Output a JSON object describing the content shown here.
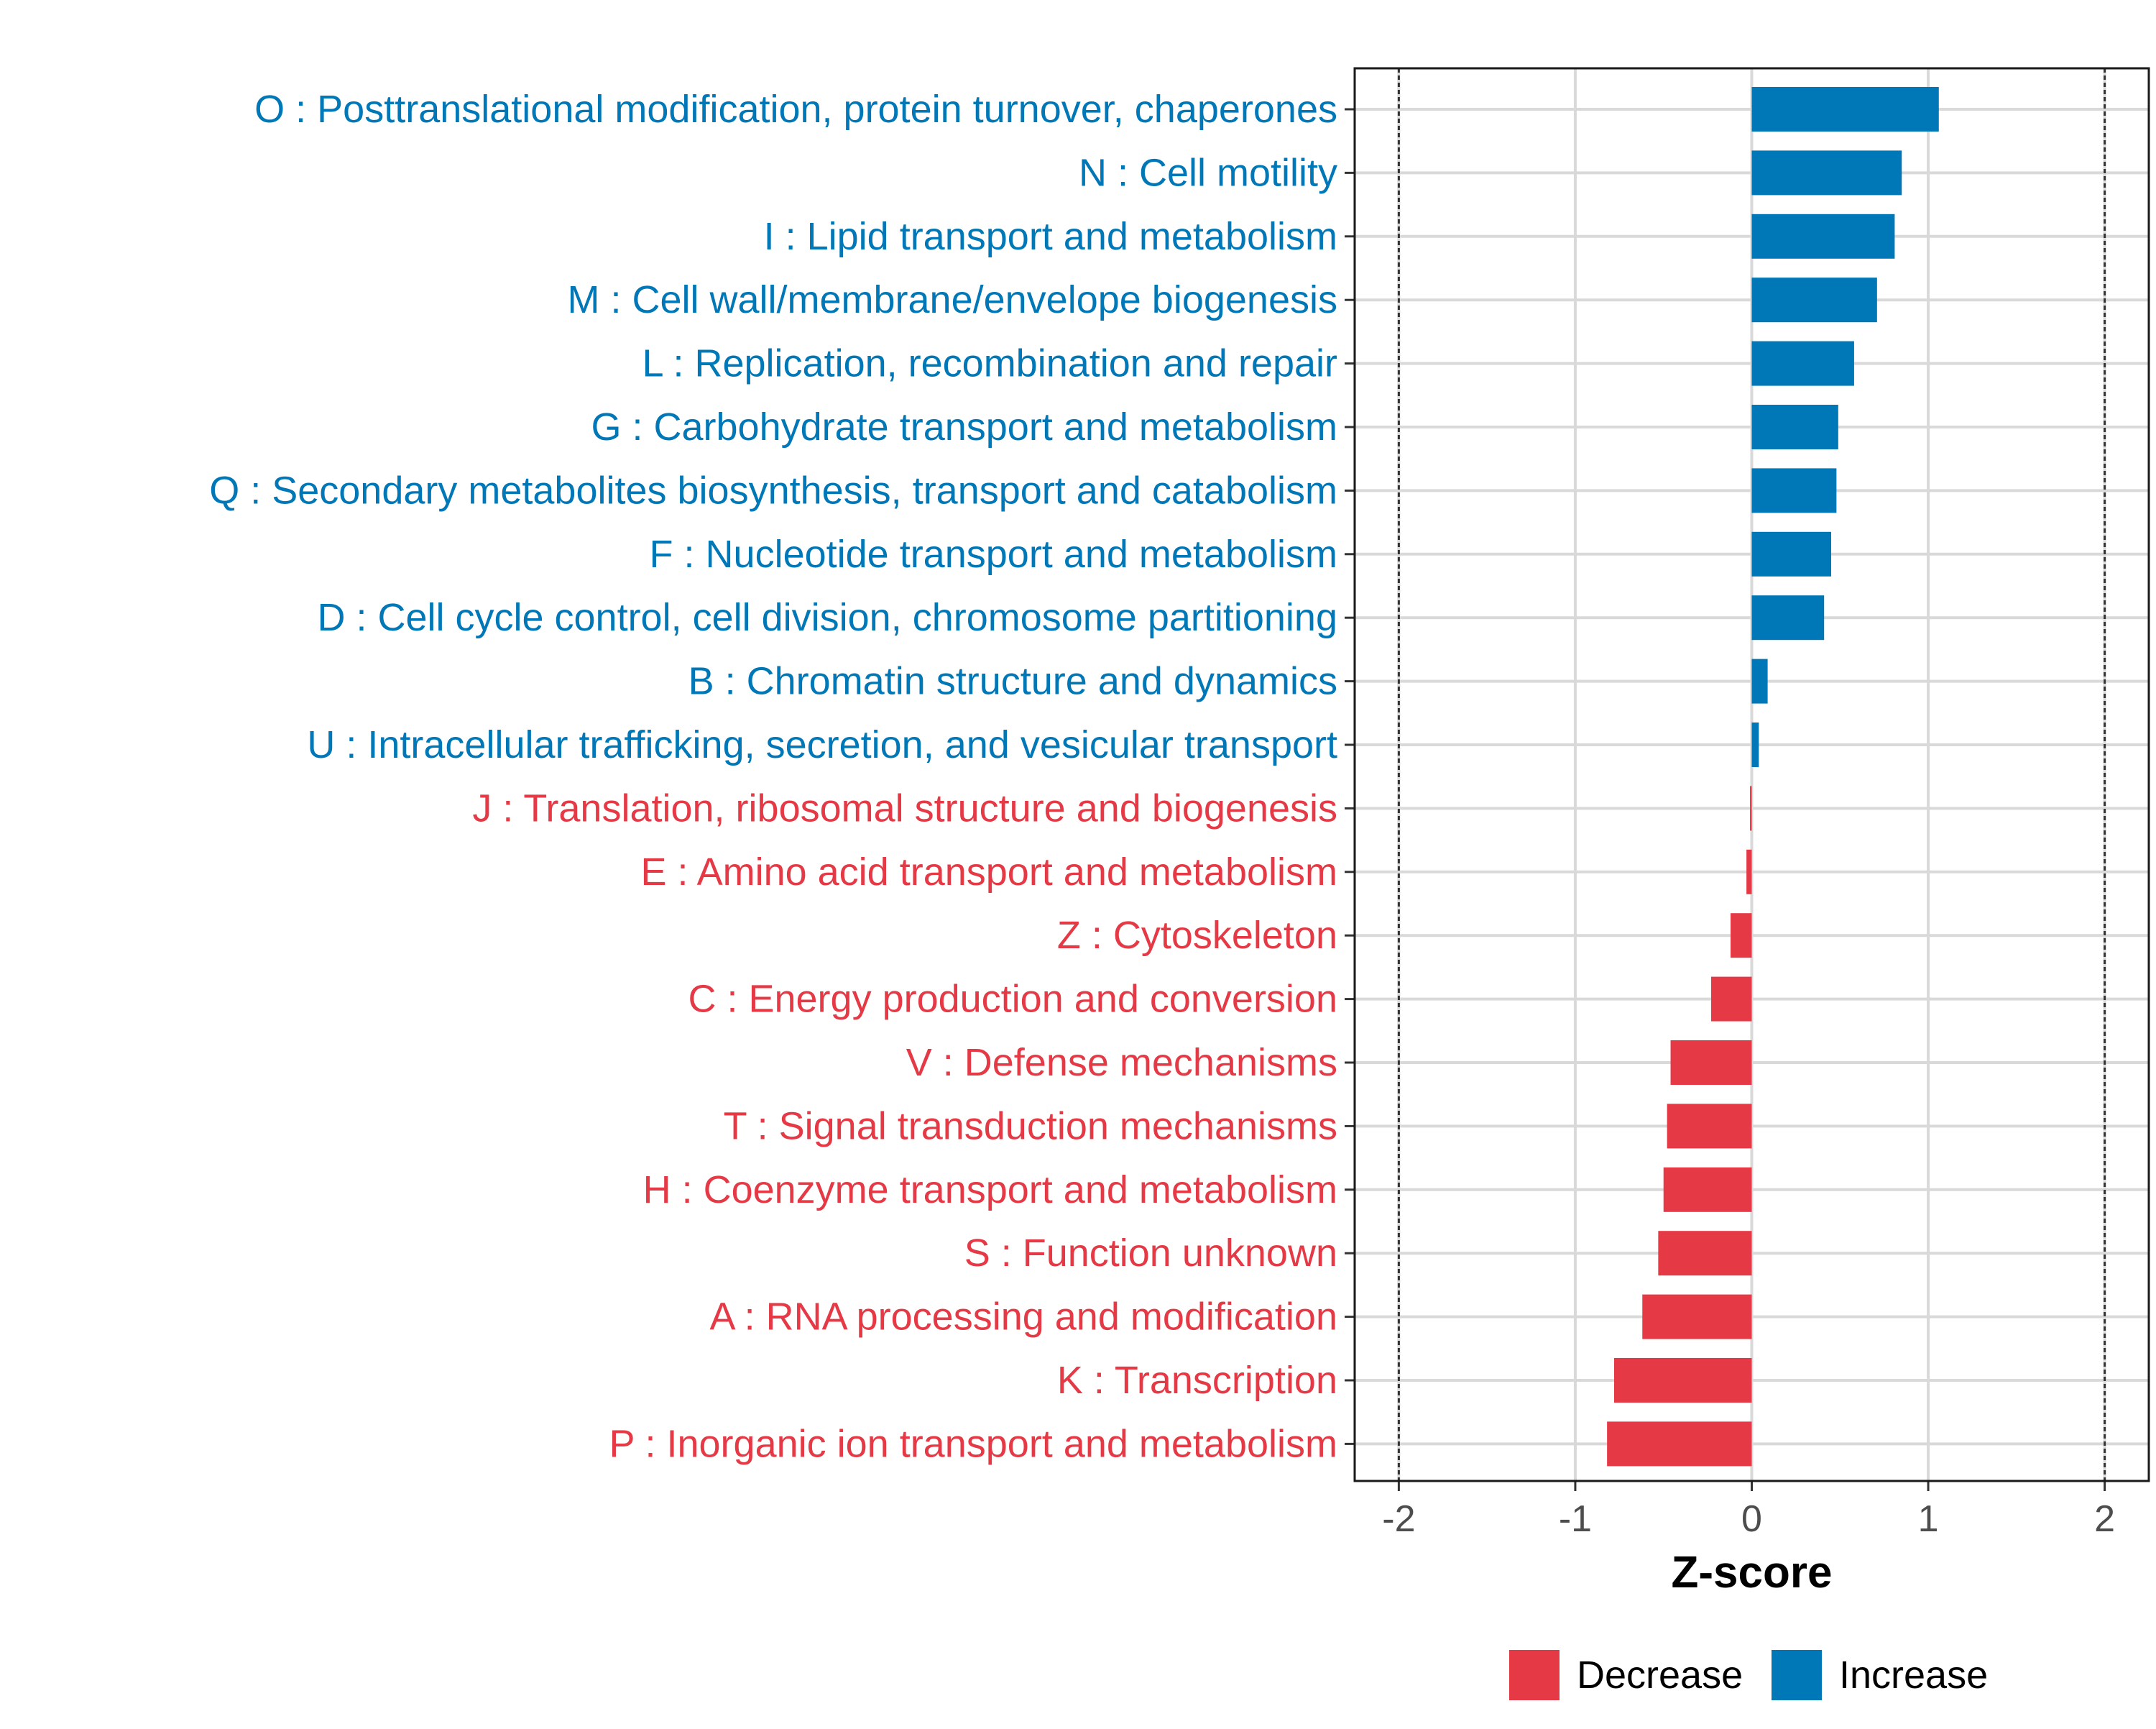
{
  "chart_data": {
    "type": "bar",
    "orientation": "horizontal",
    "xlabel": "Z-score",
    "xlim": [
      -2.25,
      2.25
    ],
    "xticks": [
      -2,
      -1,
      0,
      1,
      2
    ],
    "xtick_labels": [
      "-2",
      "-1",
      "0",
      "1",
      "2"
    ],
    "reference_lines": [
      -2,
      2
    ],
    "legend_position": "bottom",
    "colors": {
      "Decrease": "#e63946",
      "Increase": "#0077b6"
    },
    "legend": [
      {
        "label": "Decrease",
        "color": "#e63946"
      },
      {
        "label": "Increase",
        "color": "#0077b6"
      }
    ],
    "categories": [
      {
        "label": "O : Posttranslational modification, protein turnover, chaperones",
        "value": 1.06,
        "group": "Increase"
      },
      {
        "label": "N : Cell motility",
        "value": 0.85,
        "group": "Increase"
      },
      {
        "label": "I : Lipid transport and metabolism",
        "value": 0.81,
        "group": "Increase"
      },
      {
        "label": "M : Cell wall/membrane/envelope biogenesis",
        "value": 0.71,
        "group": "Increase"
      },
      {
        "label": "L : Replication, recombination and repair",
        "value": 0.58,
        "group": "Increase"
      },
      {
        "label": "G : Carbohydrate transport and metabolism",
        "value": 0.49,
        "group": "Increase"
      },
      {
        "label": "Q : Secondary metabolites biosynthesis, transport and catabolism",
        "value": 0.48,
        "group": "Increase"
      },
      {
        "label": "F : Nucleotide transport and metabolism",
        "value": 0.45,
        "group": "Increase"
      },
      {
        "label": "D : Cell cycle control, cell division, chromosome partitioning",
        "value": 0.41,
        "group": "Increase"
      },
      {
        "label": "B : Chromatin structure and dynamics",
        "value": 0.09,
        "group": "Increase"
      },
      {
        "label": "U : Intracellular trafficking, secretion, and vesicular transport",
        "value": 0.04,
        "group": "Increase"
      },
      {
        "label": "J : Translation, ribosomal structure and biogenesis",
        "value": -0.01,
        "group": "Decrease"
      },
      {
        "label": "E : Amino acid transport and metabolism",
        "value": -0.03,
        "group": "Decrease"
      },
      {
        "label": "Z : Cytoskeleton",
        "value": -0.12,
        "group": "Decrease"
      },
      {
        "label": "C : Energy production and conversion",
        "value": -0.23,
        "group": "Decrease"
      },
      {
        "label": "V : Defense mechanisms",
        "value": -0.46,
        "group": "Decrease"
      },
      {
        "label": "T : Signal transduction mechanisms",
        "value": -0.48,
        "group": "Decrease"
      },
      {
        "label": "H : Coenzyme transport and metabolism",
        "value": -0.5,
        "group": "Decrease"
      },
      {
        "label": "S : Function unknown",
        "value": -0.53,
        "group": "Decrease"
      },
      {
        "label": "A : RNA processing and modification",
        "value": -0.62,
        "group": "Decrease"
      },
      {
        "label": "K : Transcription",
        "value": -0.78,
        "group": "Decrease"
      },
      {
        "label": "P : Inorganic ion transport and metabolism",
        "value": -0.82,
        "group": "Decrease"
      }
    ]
  }
}
